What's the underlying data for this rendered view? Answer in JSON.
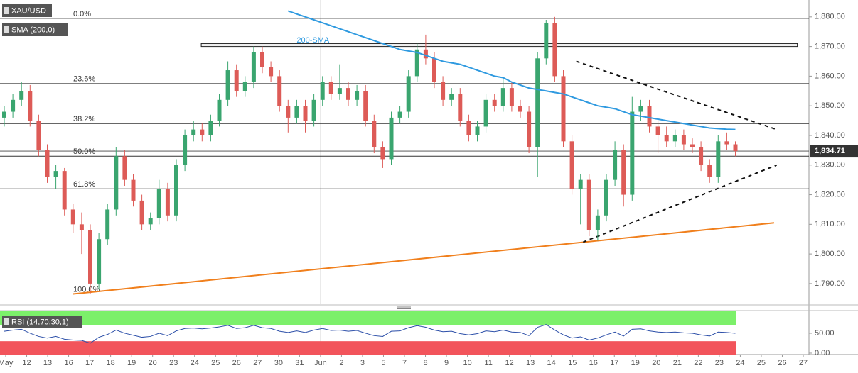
{
  "chart_data": {
    "type": "candlestick",
    "symbol": "XAU/USD",
    "indicator_label": "SMA (200,0)",
    "sma_annotation": {
      "text": "200-SMA",
      "index": 34,
      "price": 1872
    },
    "colors": {
      "up": "#3aa56f",
      "down": "#dd5b57",
      "sma": "#2f9ae0",
      "trend": "#f07f1c",
      "rsi": "#2b4ea8"
    },
    "ylim": [
      1782.8,
      1885.7
    ],
    "yticks": [
      {
        "value": 1790,
        "label": "1,790.00"
      },
      {
        "value": 1800,
        "label": "1,800.00"
      },
      {
        "value": 1810,
        "label": "1,810.00"
      },
      {
        "value": 1820,
        "label": "1,820.00"
      },
      {
        "value": 1830,
        "label": "1,830.00"
      },
      {
        "value": 1840,
        "label": "1,840.00"
      },
      {
        "value": 1850,
        "label": "1,850.00"
      },
      {
        "value": 1860,
        "label": "1,860.00"
      },
      {
        "value": 1870,
        "label": "1,870.00"
      },
      {
        "value": 1880,
        "label": "1,880.00"
      }
    ],
    "last_price": {
      "value": 1834.71,
      "label": "1,834.71"
    },
    "xticks": [
      "May",
      "12",
      "13",
      "16",
      "17",
      "18",
      "19",
      "20",
      "23",
      "24",
      "25",
      "26",
      "27",
      "30",
      "31",
      "Jun",
      "2",
      "3",
      "5",
      "7",
      "8",
      "9",
      "10",
      "11",
      "12",
      "13",
      "14",
      "15",
      "16",
      "17",
      "19",
      "20",
      "21",
      "22",
      "23",
      "24",
      "25",
      "26",
      "27"
    ],
    "month_break": 15,
    "candles": [
      [
        1846,
        1850,
        1843,
        1848
      ],
      [
        1848,
        1854,
        1846,
        1852
      ],
      [
        1852,
        1858,
        1850,
        1855
      ],
      [
        1855,
        1857,
        1843,
        1845
      ],
      [
        1845,
        1847,
        1833,
        1835
      ],
      [
        1835,
        1837,
        1824,
        1826
      ],
      [
        1826,
        1830,
        1822,
        1828
      ],
      [
        1828,
        1829,
        1813,
        1815
      ],
      [
        1815,
        1817,
        1807,
        1810
      ],
      [
        1810,
        1814,
        1800,
        1808
      ],
      [
        1808,
        1810,
        1786.5,
        1790
      ],
      [
        1790,
        1807,
        1788,
        1805
      ],
      [
        1805,
        1817,
        1803,
        1815
      ],
      [
        1815,
        1836,
        1813,
        1833
      ],
      [
        1833,
        1835,
        1823,
        1825
      ],
      [
        1825,
        1827,
        1816,
        1818
      ],
      [
        1818,
        1820,
        1808,
        1810
      ],
      [
        1810,
        1814,
        1808,
        1812
      ],
      [
        1812,
        1825,
        1810,
        1822
      ],
      [
        1822,
        1824,
        1811,
        1813
      ],
      [
        1813,
        1832,
        1811,
        1830
      ],
      [
        1830,
        1842,
        1828,
        1840
      ],
      [
        1840,
        1845,
        1838,
        1842
      ],
      [
        1842,
        1844,
        1838,
        1840
      ],
      [
        1840,
        1847,
        1838,
        1845
      ],
      [
        1845,
        1854,
        1843,
        1852
      ],
      [
        1852,
        1865,
        1850,
        1862
      ],
      [
        1862,
        1864,
        1853,
        1855
      ],
      [
        1855,
        1860,
        1853,
        1858
      ],
      [
        1858,
        1870,
        1856,
        1868
      ],
      [
        1868,
        1870,
        1861,
        1863
      ],
      [
        1863,
        1865,
        1858,
        1860
      ],
      [
        1860,
        1862,
        1848,
        1850
      ],
      [
        1850,
        1852,
        1841,
        1846
      ],
      [
        1846,
        1852,
        1844,
        1850
      ],
      [
        1850,
        1852,
        1841,
        1845
      ],
      [
        1845,
        1854,
        1843,
        1852
      ],
      [
        1852,
        1860,
        1850,
        1858
      ],
      [
        1858,
        1860,
        1852,
        1854
      ],
      [
        1854,
        1864,
        1852,
        1856
      ],
      [
        1856,
        1858,
        1850,
        1852
      ],
      [
        1852,
        1857,
        1850,
        1855
      ],
      [
        1855,
        1857,
        1843,
        1845
      ],
      [
        1845,
        1847,
        1834,
        1836
      ],
      [
        1836,
        1838,
        1829,
        1832
      ],
      [
        1832,
        1848,
        1830,
        1846
      ],
      [
        1846,
        1850,
        1844,
        1848
      ],
      [
        1848,
        1862,
        1846,
        1860
      ],
      [
        1860,
        1871,
        1858,
        1869
      ],
      [
        1869,
        1874,
        1864,
        1866
      ],
      [
        1866,
        1868,
        1856,
        1858
      ],
      [
        1858,
        1860,
        1850,
        1852
      ],
      [
        1852,
        1856,
        1850,
        1854
      ],
      [
        1854,
        1856,
        1843,
        1845
      ],
      [
        1845,
        1847,
        1838,
        1840
      ],
      [
        1840,
        1845,
        1838,
        1843
      ],
      [
        1843,
        1854,
        1841,
        1852
      ],
      [
        1852,
        1854,
        1848,
        1850
      ],
      [
        1850,
        1859,
        1848,
        1856
      ],
      [
        1856,
        1858,
        1848,
        1850
      ],
      [
        1850,
        1852,
        1846,
        1848
      ],
      [
        1848,
        1850,
        1834,
        1836
      ],
      [
        1836,
        1868,
        1826,
        1866
      ],
      [
        1866,
        1879,
        1864,
        1878
      ],
      [
        1878,
        1880,
        1858,
        1860
      ],
      [
        1860,
        1862,
        1836,
        1838
      ],
      [
        1838,
        1840,
        1820,
        1822
      ],
      [
        1822,
        1827,
        1810,
        1825
      ],
      [
        1825,
        1827,
        1806,
        1808
      ],
      [
        1808,
        1815,
        1804.5,
        1813
      ],
      [
        1813,
        1827,
        1811,
        1825
      ],
      [
        1825,
        1838,
        1823,
        1835
      ],
      [
        1835,
        1837,
        1816,
        1820
      ],
      [
        1820,
        1853,
        1818,
        1848
      ],
      [
        1848,
        1852,
        1845,
        1850
      ],
      [
        1850,
        1852,
        1841,
        1843
      ],
      [
        1843,
        1845,
        1834,
        1840
      ],
      [
        1840,
        1843,
        1836,
        1838
      ],
      [
        1838,
        1842,
        1836,
        1840
      ],
      [
        1840,
        1842,
        1835,
        1837
      ],
      [
        1837,
        1839,
        1834,
        1836
      ],
      [
        1836,
        1838,
        1828,
        1830
      ],
      [
        1830,
        1832,
        1824,
        1826
      ],
      [
        1826,
        1840,
        1824,
        1838
      ],
      [
        1838,
        1841,
        1835,
        1837
      ],
      [
        1837,
        1838,
        1833,
        1834.71
      ]
    ],
    "sma": {
      "values": [
        null,
        null,
        null,
        null,
        null,
        null,
        null,
        null,
        null,
        null,
        null,
        null,
        null,
        null,
        null,
        null,
        null,
        null,
        null,
        null,
        null,
        null,
        null,
        null,
        null,
        null,
        null,
        null,
        null,
        null,
        null,
        null,
        null,
        1882,
        1881,
        1880,
        1879,
        1878,
        1877,
        1876,
        1875,
        1874,
        1873,
        1872,
        1871,
        1870,
        1869,
        1868.5,
        1868,
        1867,
        1866,
        1865,
        1864.5,
        1864,
        1863,
        1862,
        1861,
        1860,
        1859.5,
        1858,
        1857,
        1856,
        1855.5,
        1855,
        1854.5,
        1854,
        1853,
        1852,
        1851,
        1850,
        1849.5,
        1849,
        1848,
        1847,
        1846.5,
        1846,
        1845.5,
        1845,
        1844.5,
        1844,
        1843.5,
        1843,
        1842.5,
        1842.3,
        1842.1,
        1842
      ]
    },
    "fib_levels": [
      {
        "label": "0.0%",
        "price": 1879.5
      },
      {
        "label": "23.6%",
        "price": 1857.5
      },
      {
        "label": "38.2%",
        "price": 1844
      },
      {
        "label": "50.0%",
        "price": 1833
      },
      {
        "label": "61.8%",
        "price": 1822
      },
      {
        "label": "100.0%",
        "price": 1786.5
      }
    ],
    "trendlines": [
      {
        "start": [
          8,
          1786.5
        ],
        "end": [
          89.5,
          1810.5
        ],
        "dashed": false
      },
      {
        "start": [
          66.5,
          1865
        ],
        "end": [
          89.8,
          1842
        ],
        "dashed": true
      },
      {
        "start": [
          67.3,
          1804
        ],
        "end": [
          89.8,
          1830
        ],
        "dashed": true
      }
    ],
    "zone": {
      "low": 1870,
      "high": 1871,
      "start": 22.9,
      "end": 92.2
    },
    "rsi": {
      "label": "RSI (14,70,30,1)",
      "lim": [
        -3.6,
        107
      ],
      "overbought": 70,
      "oversold": 30,
      "ticks": [
        {
          "value": 50,
          "label": "50.00"
        },
        {
          "value": 0,
          "label": "0.00"
        }
      ],
      "values": [
        55,
        58,
        60,
        50,
        42,
        38,
        42,
        35,
        33,
        32,
        25,
        40,
        47,
        58,
        50,
        45,
        40,
        42,
        50,
        44,
        56,
        62,
        63,
        61,
        63,
        66,
        70,
        62,
        64,
        70,
        64,
        62,
        55,
        52,
        56,
        52,
        58,
        62,
        57,
        58,
        55,
        57,
        50,
        44,
        42,
        55,
        56,
        64,
        69,
        65,
        58,
        54,
        55,
        49,
        46,
        49,
        56,
        54,
        58,
        53,
        52,
        44,
        65,
        72,
        58,
        46,
        38,
        41,
        33,
        38,
        46,
        53,
        43,
        60,
        61,
        56,
        53,
        52,
        53,
        51,
        50,
        46,
        43,
        53,
        52,
        50
      ]
    }
  }
}
